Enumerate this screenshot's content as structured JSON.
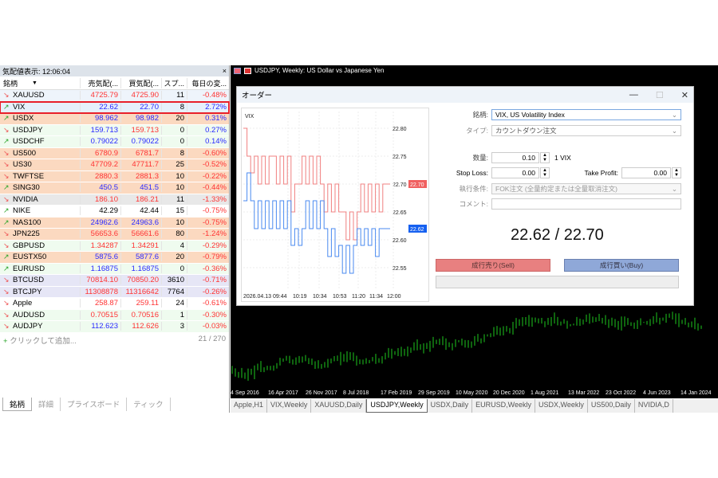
{
  "market_watch": {
    "title": "気配値表示: 12:06:04",
    "close": "×",
    "columns": [
      "銘柄",
      "売気配(...",
      "買気配(...",
      "スプ...",
      "毎日の変..."
    ],
    "rows": [
      {
        "symbol": "XAUUSD",
        "dir": "down",
        "bid": "4725.79",
        "ask": "4725.90",
        "spread": "11",
        "change": "-0.48%",
        "bid_color": "r",
        "ask_color": "r",
        "bg": "#eef4fb"
      },
      {
        "symbol": "VIX",
        "dir": "up",
        "bid": "22.62",
        "ask": "22.70",
        "spread": "8",
        "change": "2.72%",
        "bid_color": "b",
        "ask_color": "b",
        "bg": "#e6f0fb",
        "selected": true
      },
      {
        "symbol": "USDX",
        "dir": "up",
        "bid": "98.962",
        "ask": "98.982",
        "spread": "20",
        "change": "0.31%",
        "bid_color": "b",
        "ask_color": "b",
        "bg": "#fbd9c0"
      },
      {
        "symbol": "USDJPY",
        "dir": "down",
        "bid": "159.713",
        "ask": "159.713",
        "spread": "0",
        "change": "0.27%",
        "bid_color": "b",
        "ask_color": "r",
        "bg": "#effbef"
      },
      {
        "symbol": "USDCHF",
        "dir": "up",
        "bid": "0.79022",
        "ask": "0.79022",
        "spread": "0",
        "change": "0.14%",
        "bid_color": "b",
        "ask_color": "b",
        "bg": "#effbef"
      },
      {
        "symbol": "US500",
        "dir": "down",
        "bid": "6780.9",
        "ask": "6781.7",
        "spread": "8",
        "change": "-0.60%",
        "bid_color": "r",
        "ask_color": "r",
        "bg": "#fbd9c0"
      },
      {
        "symbol": "US30",
        "dir": "down",
        "bid": "47709.2",
        "ask": "47711.7",
        "spread": "25",
        "change": "-0.52%",
        "bid_color": "r",
        "ask_color": "r",
        "bg": "#fbd9c0"
      },
      {
        "symbol": "TWFTSE",
        "dir": "down",
        "bid": "2880.3",
        "ask": "2881.3",
        "spread": "10",
        "change": "-0.22%",
        "bid_color": "r",
        "ask_color": "r",
        "bg": "#fbd9c0"
      },
      {
        "symbol": "SING30",
        "dir": "up",
        "bid": "450.5",
        "ask": "451.5",
        "spread": "10",
        "change": "-0.44%",
        "bid_color": "b",
        "ask_color": "b",
        "bg": "#fbd9c0"
      },
      {
        "symbol": "NVIDIA",
        "dir": "down",
        "bid": "186.10",
        "ask": "186.21",
        "spread": "11",
        "change": "-1.33%",
        "bid_color": "r",
        "ask_color": "r",
        "bg": "#e8e8e8"
      },
      {
        "symbol": "NIKE",
        "dir": "up",
        "bid": "42.29",
        "ask": "42.44",
        "spread": "15",
        "change": "-0.75%",
        "bid_color": "k",
        "ask_color": "k",
        "bg": "#ffffff"
      },
      {
        "symbol": "NAS100",
        "dir": "up",
        "bid": "24962.6",
        "ask": "24963.6",
        "spread": "10",
        "change": "-0.75%",
        "bid_color": "b",
        "ask_color": "b",
        "bg": "#fbd9c0"
      },
      {
        "symbol": "JPN225",
        "dir": "down",
        "bid": "56653.6",
        "ask": "56661.6",
        "spread": "80",
        "change": "-1.24%",
        "bid_color": "r",
        "ask_color": "r",
        "bg": "#fbd9c0"
      },
      {
        "symbol": "GBPUSD",
        "dir": "down",
        "bid": "1.34287",
        "ask": "1.34291",
        "spread": "4",
        "change": "-0.29%",
        "bid_color": "r",
        "ask_color": "r",
        "bg": "#effbef"
      },
      {
        "symbol": "EUSTX50",
        "dir": "up",
        "bid": "5875.6",
        "ask": "5877.6",
        "spread": "20",
        "change": "-0.79%",
        "bid_color": "b",
        "ask_color": "b",
        "bg": "#fbd9c0"
      },
      {
        "symbol": "EURUSD",
        "dir": "up",
        "bid": "1.16875",
        "ask": "1.16875",
        "spread": "0",
        "change": "-0.36%",
        "bid_color": "b",
        "ask_color": "b",
        "bg": "#effbef"
      },
      {
        "symbol": "BTCUSD",
        "dir": "down",
        "bid": "70814.10",
        "ask": "70850.20",
        "spread": "3610",
        "change": "-0.71%",
        "bid_color": "r",
        "ask_color": "r",
        "bg": "#e6e6f6"
      },
      {
        "symbol": "BTCJPY",
        "dir": "down",
        "bid": "11308878",
        "ask": "11316642",
        "spread": "7764",
        "change": "-0.26%",
        "bid_color": "r",
        "ask_color": "r",
        "bg": "#e6e6f6"
      },
      {
        "symbol": "Apple",
        "dir": "down",
        "bid": "258.87",
        "ask": "259.11",
        "spread": "24",
        "change": "-0.61%",
        "bid_color": "r",
        "ask_color": "r",
        "bg": "#ffffff"
      },
      {
        "symbol": "AUDUSD",
        "dir": "down",
        "bid": "0.70515",
        "ask": "0.70516",
        "spread": "1",
        "change": "-0.30%",
        "bid_color": "r",
        "ask_color": "r",
        "bg": "#effbef"
      },
      {
        "symbol": "AUDJPY",
        "dir": "down",
        "bid": "112.623",
        "ask": "112.626",
        "spread": "3",
        "change": "-0.03%",
        "bid_color": "b",
        "ask_color": "r",
        "bg": "#effbef"
      }
    ],
    "add_label": "クリックして追加...",
    "count": "21 / 270",
    "tabs": [
      "銘柄",
      "詳細",
      "プライスボード",
      "ティック"
    ]
  },
  "chart": {
    "title": "USDJPY, Weekly:  US Dollar vs Japanese Yen",
    "dates": [
      "4 Sep 2016",
      "16 Apr 2017",
      "26 Nov 2017",
      "8 Jul 2018",
      "17 Feb 2019",
      "29 Sep 2019",
      "10 May 2020",
      "20 Dec 2020",
      "1 Aug 2021",
      "13 Mar 2022",
      "23 Oct 2022",
      "4 Jun 2023",
      "14 Jan 2024"
    ],
    "tabs": [
      "Apple,H1",
      "VIX,Weekly",
      "XAUUSD,Daily",
      "USDJPY,Weekly",
      "USDX,Daily",
      "EURUSD,Weekly",
      "USDX,Weekly",
      "US500,Daily",
      "NVIDIA,D"
    ],
    "active_tab": 3
  },
  "order": {
    "title": "オーダー",
    "symbol_label": "銘柄:",
    "symbol_value": "VIX, US Volatility Index",
    "type_label": "タイプ:",
    "type_value": "カウントダウン注文",
    "volume_label": "数量:",
    "volume_value": "0.10",
    "volume_unit": "1 VIX",
    "sl_label": "Stop Loss:",
    "sl_value": "0.00",
    "tp_label": "Take Profit:",
    "tp_value": "0.00",
    "exec_label": "執行条件:",
    "exec_value": "FOK注文 (全量約定または全量取消注文)",
    "comment_label": "コメント:",
    "comment_value": "",
    "price": "22.62 / 22.70",
    "sell": "成行売り(Sell)",
    "buy": "成行買い(Buy)"
  },
  "chart_data": {
    "type": "line",
    "title": "VIX",
    "x_ticks": [
      "2026.04.13 09:44",
      "10:19",
      "10:34",
      "10:53",
      "11:20",
      "11:34",
      "12:00"
    ],
    "y_ticks": [
      "22.80",
      "22.75",
      "22.70",
      "22.65",
      "22.60",
      "22.55"
    ],
    "ylim": [
      22.51,
      22.83
    ],
    "series": [
      {
        "color": "#f08080",
        "values": [
          22.8,
          22.75,
          22.72,
          22.75,
          22.7,
          22.75,
          22.7,
          22.75,
          22.75,
          22.7,
          22.75,
          22.7,
          22.75,
          22.65,
          22.7,
          22.7,
          22.75,
          22.7,
          22.75,
          22.7,
          22.75,
          22.7,
          22.65,
          22.7,
          22.65,
          22.7,
          22.65,
          22.65,
          22.6,
          22.65,
          22.6,
          22.65,
          22.7,
          22.65,
          22.7,
          22.65,
          22.7,
          22.65,
          22.7,
          22.7
        ]
      },
      {
        "color": "#4a8af0",
        "values": [
          22.67,
          22.72,
          22.67,
          22.62,
          22.67,
          22.62,
          22.67,
          22.62,
          22.67,
          22.62,
          22.67,
          22.62,
          22.67,
          22.59,
          22.62,
          22.59,
          22.62,
          22.67,
          22.62,
          22.67,
          22.62,
          22.67,
          22.62,
          22.57,
          22.62,
          22.57,
          22.59,
          22.54,
          22.59,
          22.54,
          22.59,
          22.62,
          22.59,
          22.62,
          22.59,
          22.62,
          22.57,
          22.62,
          22.62,
          22.62
        ]
      }
    ],
    "price_labels": [
      {
        "value": "22.70",
        "color": "#f06060"
      },
      {
        "value": "22.62",
        "color": "#1560f0"
      }
    ]
  }
}
